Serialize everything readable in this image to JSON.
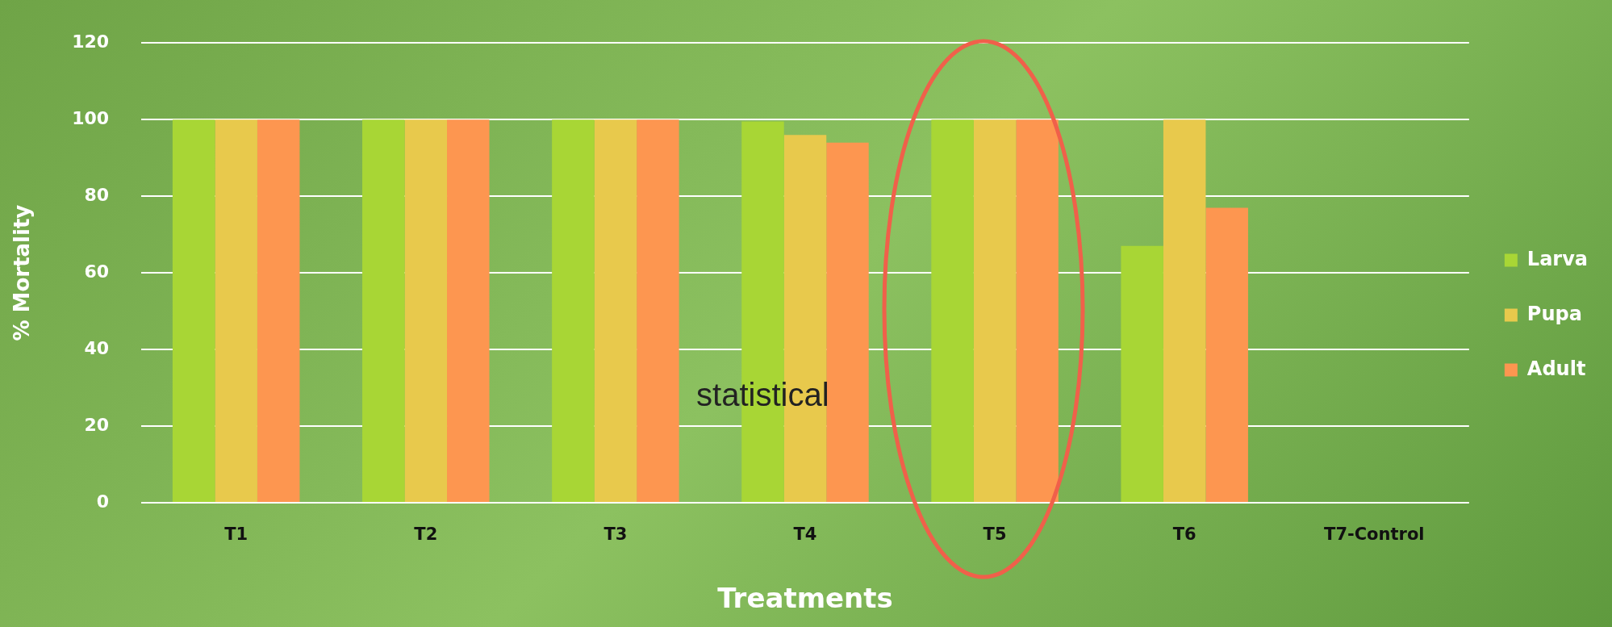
{
  "chart_data": {
    "type": "bar",
    "xlabel": "Treatments",
    "ylabel": "% Mortality",
    "categories": [
      "T1",
      "T2",
      "T3",
      "T4",
      "T5",
      "T6",
      "T7-Control"
    ],
    "series": [
      {
        "name": "Larva",
        "color": "#a8d635",
        "values": [
          100,
          100,
          100,
          99.5,
          100,
          67,
          null
        ]
      },
      {
        "name": "Pupa",
        "color": "#e8c94c",
        "values": [
          100,
          100,
          100,
          96,
          100,
          100,
          null
        ]
      },
      {
        "name": "Adult",
        "color": "#fd9650",
        "values": [
          100,
          100,
          100,
          94,
          100,
          77,
          null
        ]
      }
    ],
    "ylim": [
      0,
      120
    ],
    "yticks": [
      0,
      20,
      40,
      60,
      80,
      100,
      120
    ],
    "grid": "y",
    "legend": "right",
    "annotations": [
      "statistical"
    ]
  }
}
